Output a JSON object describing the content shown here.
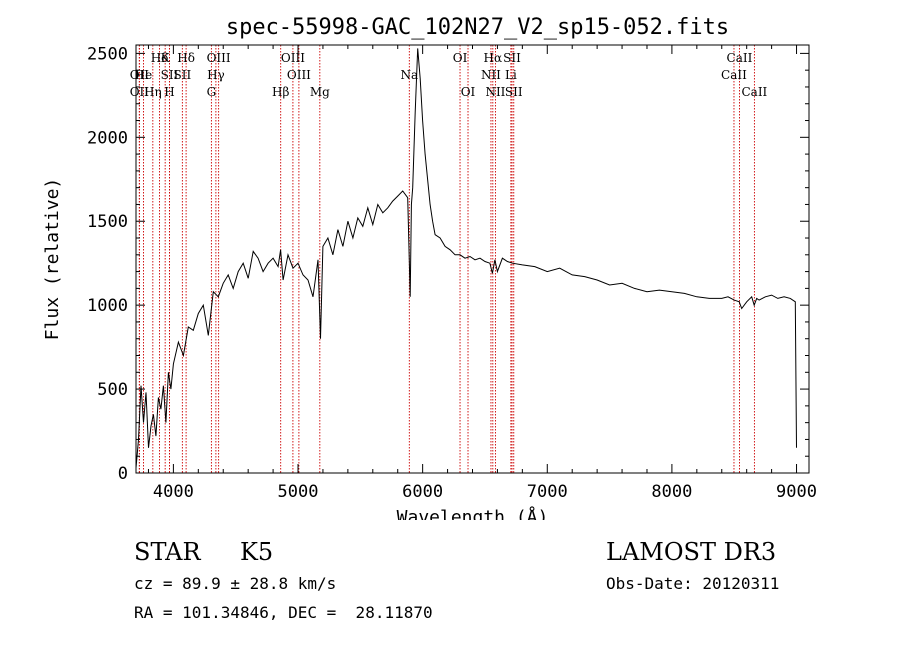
{
  "chart_data": {
    "type": "line",
    "title": "spec-55998-GAC_102N27_V2_sp15-052.fits",
    "xlabel": "Wavelength (Å)",
    "ylabel": "Flux (relative)",
    "xlim": [
      3700,
      9100
    ],
    "ylim": [
      0,
      2550
    ],
    "xticks": [
      4000,
      5000,
      6000,
      7000,
      8000,
      9000
    ],
    "yticks": [
      0,
      500,
      1000,
      1500,
      2000,
      2500
    ],
    "grid": false,
    "series": [
      {
        "name": "flux",
        "x": [
          3700,
          3720,
          3740,
          3760,
          3780,
          3800,
          3820,
          3840,
          3860,
          3880,
          3900,
          3920,
          3940,
          3960,
          3980,
          4000,
          4040,
          4080,
          4120,
          4160,
          4200,
          4240,
          4280,
          4320,
          4360,
          4400,
          4440,
          4480,
          4520,
          4560,
          4600,
          4640,
          4680,
          4720,
          4760,
          4800,
          4840,
          4860,
          4880,
          4920,
          4960,
          5000,
          5040,
          5080,
          5120,
          5160,
          5180,
          5200,
          5240,
          5280,
          5320,
          5360,
          5400,
          5440,
          5480,
          5520,
          5560,
          5600,
          5640,
          5680,
          5720,
          5760,
          5800,
          5840,
          5880,
          5900,
          5910,
          5920,
          5940,
          5960,
          5980,
          6000,
          6020,
          6040,
          6060,
          6080,
          6100,
          6140,
          6180,
          6220,
          6260,
          6300,
          6340,
          6380,
          6420,
          6460,
          6500,
          6540,
          6560,
          6580,
          6600,
          6640,
          6680,
          6720,
          6800,
          6900,
          7000,
          7100,
          7200,
          7300,
          7400,
          7500,
          7600,
          7700,
          7800,
          7900,
          8000,
          8100,
          8200,
          8300,
          8400,
          8450,
          8500,
          8540,
          8560,
          8600,
          8640,
          8660,
          8680,
          8700,
          8750,
          8800,
          8850,
          8900,
          8950,
          8990,
          9000
        ],
        "y": [
          30,
          200,
          520,
          300,
          480,
          150,
          280,
          350,
          220,
          450,
          380,
          520,
          300,
          600,
          500,
          650,
          780,
          700,
          870,
          850,
          950,
          1000,
          820,
          1080,
          1050,
          1130,
          1180,
          1100,
          1200,
          1250,
          1160,
          1320,
          1280,
          1200,
          1250,
          1280,
          1230,
          1330,
          1150,
          1300,
          1220,
          1250,
          1180,
          1150,
          1050,
          1270,
          800,
          1350,
          1400,
          1300,
          1450,
          1350,
          1500,
          1400,
          1520,
          1470,
          1580,
          1480,
          1600,
          1550,
          1580,
          1620,
          1650,
          1680,
          1640,
          1050,
          1600,
          1700,
          2150,
          2530,
          2350,
          2100,
          1900,
          1750,
          1600,
          1500,
          1420,
          1400,
          1350,
          1330,
          1300,
          1300,
          1280,
          1290,
          1270,
          1280,
          1260,
          1250,
          1190,
          1270,
          1200,
          1280,
          1260,
          1250,
          1240,
          1230,
          1200,
          1220,
          1180,
          1170,
          1150,
          1120,
          1130,
          1100,
          1080,
          1090,
          1080,
          1070,
          1050,
          1040,
          1040,
          1050,
          1030,
          1020,
          980,
          1020,
          1050,
          1000,
          1040,
          1030,
          1050,
          1060,
          1040,
          1050,
          1040,
          1020,
          150
        ]
      }
    ],
    "line_annotations": [
      {
        "label": "Hδ",
        "x": 3889,
        "row": 0
      },
      {
        "label": "OII",
        "x": 3727,
        "row": 1
      },
      {
        "label": "He",
        "x": 3760,
        "row": 1
      },
      {
        "label": "Hη",
        "x": 3835,
        "row": 2
      },
      {
        "label": "OII",
        "x": 3727,
        "row": 2
      },
      {
        "label": "K",
        "x": 3934,
        "row": 0
      },
      {
        "label": "SII",
        "x": 3969,
        "row": 1
      },
      {
        "label": "H",
        "x": 3969,
        "row": 2
      },
      {
        "label": "Hδ",
        "x": 4102,
        "row": 0
      },
      {
        "label": "SII",
        "x": 4072,
        "row": 1
      },
      {
        "label": "OIII",
        "x": 4363,
        "row": 0
      },
      {
        "label": "Hγ",
        "x": 4341,
        "row": 1
      },
      {
        "label": "G",
        "x": 4305,
        "row": 2
      },
      {
        "label": "Hβ",
        "x": 4861,
        "row": 2
      },
      {
        "label": "OIII",
        "x": 4959,
        "row": 0
      },
      {
        "label": "OIII",
        "x": 5007,
        "row": 1
      },
      {
        "label": "Mg",
        "x": 5175,
        "row": 2
      },
      {
        "label": "Na",
        "x": 5893,
        "row": 1
      },
      {
        "label": "OI",
        "x": 6300,
        "row": 0
      },
      {
        "label": "OI",
        "x": 6364,
        "row": 2
      },
      {
        "label": "Hα",
        "x": 6563,
        "row": 0
      },
      {
        "label": "NII",
        "x": 6548,
        "row": 1
      },
      {
        "label": "NII",
        "x": 6584,
        "row": 2
      },
      {
        "label": "SII",
        "x": 6717,
        "row": 0
      },
      {
        "label": "Li",
        "x": 6708,
        "row": 1
      },
      {
        "label": "SII",
        "x": 6731,
        "row": 2
      },
      {
        "label": "CaII",
        "x": 8542,
        "row": 0
      },
      {
        "label": "CaII",
        "x": 8498,
        "row": 1
      },
      {
        "label": "CaII",
        "x": 8662,
        "row": 2
      }
    ],
    "marker_color": "#cc0000"
  },
  "info": {
    "object_class": "STAR",
    "subclass": "K5",
    "survey": "LAMOST DR3",
    "cz": "cz = 89.9 ± 28.8 km/s",
    "obs_date": "Obs-Date: 20120311",
    "radec": "RA = 101.34846, DEC =  28.11870"
  }
}
